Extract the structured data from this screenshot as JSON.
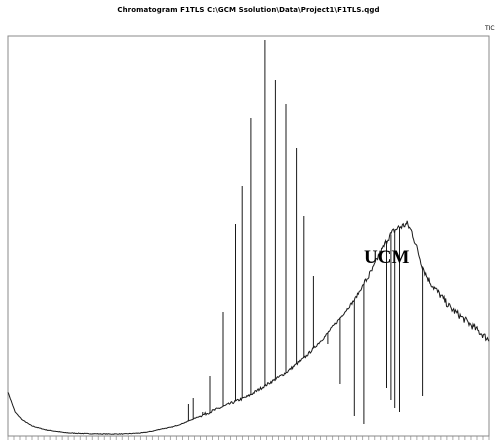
{
  "chart_data": {
    "type": "line",
    "title": "Chromatogram F1TLS C:\\GCM Ssolution\\Data\\Project1\\F1TLS.qgd",
    "trace_label": "TIC",
    "annotation": "UCM",
    "xlabel": "",
    "ylabel": "",
    "grid": false,
    "legend": "none",
    "colors": {
      "trace": "#1a1a1a",
      "frame": "#888888",
      "background": "#ffffff"
    },
    "axes": {
      "x_domain": [
        0,
        100
      ],
      "y_domain": [
        0,
        100
      ],
      "tick_count": 80
    },
    "series": [
      {
        "x": [
          0,
          1.5,
          3,
          5,
          8,
          12,
          16,
          20,
          24,
          28,
          30,
          32,
          34,
          36,
          38,
          40,
          42,
          44,
          46,
          48,
          50,
          52,
          54,
          56,
          58,
          60,
          62,
          64,
          66,
          68,
          70,
          72,
          74,
          76,
          77,
          78,
          79,
          80,
          81,
          82,
          83,
          84,
          85,
          86,
          87,
          88,
          89,
          90,
          91,
          92,
          93,
          94,
          95,
          96,
          97,
          98,
          99,
          100
        ],
        "y": [
          11,
          6,
          4,
          2.5,
          1.5,
          0.8,
          0.6,
          0.5,
          0.5,
          0.8,
          1.2,
          1.8,
          2.2,
          3,
          4,
          5,
          6,
          7,
          8,
          9,
          10,
          11.5,
          13,
          14.5,
          16,
          18,
          20,
          22.5,
          25,
          28,
          31,
          34,
          38,
          42,
          45,
          47,
          49.5,
          51,
          52,
          52.5,
          53,
          51,
          47,
          43,
          40,
          38,
          36.5,
          35,
          33.5,
          32,
          31,
          30,
          29,
          28,
          27,
          26,
          25,
          24
        ]
      }
    ],
    "peaks": [
      {
        "x": 37.5,
        "y": 8
      },
      {
        "x": 38.5,
        "y": 9.5
      },
      {
        "x": 40.5,
        "y": 6
      },
      {
        "x": 42,
        "y": 15
      },
      {
        "x": 44.7,
        "y": 31
      },
      {
        "x": 47.3,
        "y": 53
      },
      {
        "x": 48.7,
        "y": 62.5
      },
      {
        "x": 50.5,
        "y": 79.5
      },
      {
        "x": 53.4,
        "y": 99
      },
      {
        "x": 55.6,
        "y": 89
      },
      {
        "x": 57.8,
        "y": 83
      },
      {
        "x": 60,
        "y": 72
      },
      {
        "x": 61.5,
        "y": 55
      },
      {
        "x": 63.5,
        "y": 40
      },
      {
        "x": 66.5,
        "y": 23
      },
      {
        "x": 69,
        "y": 13
      },
      {
        "x": 72,
        "y": 5
      },
      {
        "x": 74,
        "y": 3
      },
      {
        "x": 78.7,
        "y": 12
      },
      {
        "x": 79.6,
        "y": 9
      },
      {
        "x": 80.4,
        "y": 7
      },
      {
        "x": 81.4,
        "y": 6
      },
      {
        "x": 86.2,
        "y": 10
      }
    ]
  }
}
